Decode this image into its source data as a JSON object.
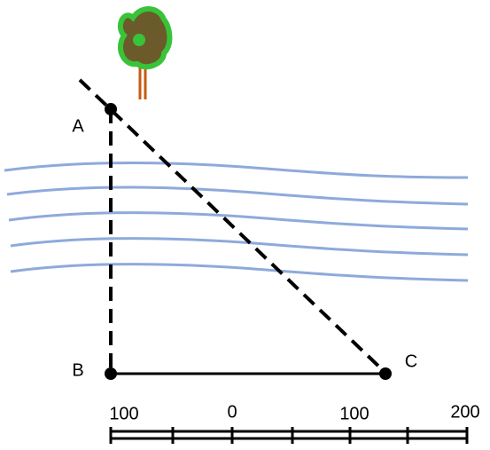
{
  "nodes": [
    {
      "label": "A"
    },
    {
      "label": "B"
    },
    {
      "label": "C"
    }
  ],
  "scale": {
    "labels": [
      "100",
      "0",
      "100",
      "200"
    ]
  }
}
